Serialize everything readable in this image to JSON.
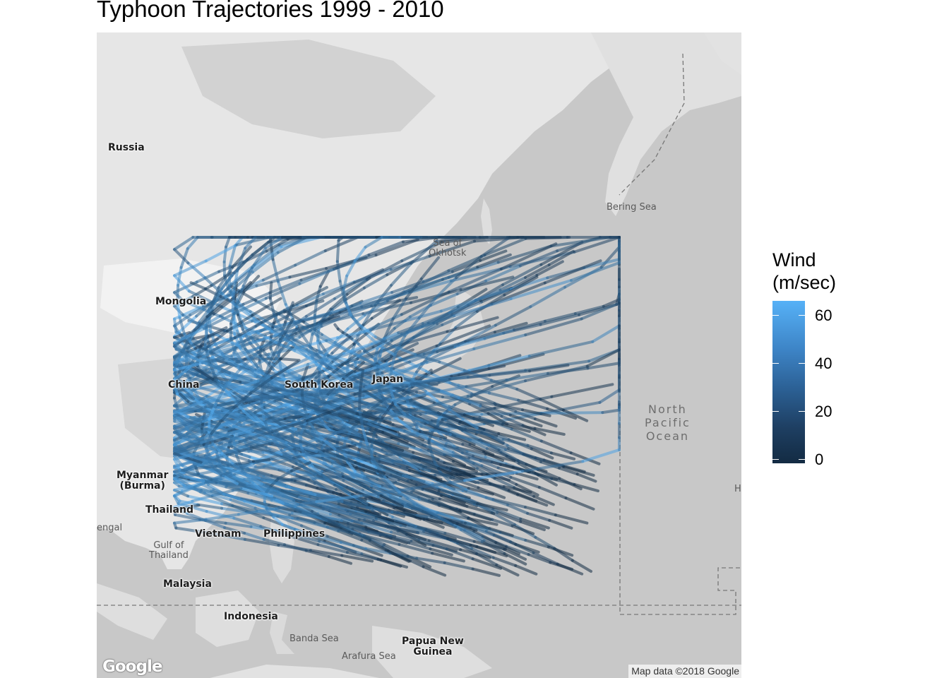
{
  "title": "Typhoon Trajectories 1999 - 2010",
  "map": {
    "attribution": "Map data ©2018 Google",
    "logo": "Google",
    "country_labels": [
      {
        "id": "russia",
        "text": "Russia"
      },
      {
        "id": "mongolia",
        "text": "Mongolia"
      },
      {
        "id": "china",
        "text": "China"
      },
      {
        "id": "south-korea",
        "text": "South Korea"
      },
      {
        "id": "japan",
        "text": "Japan"
      },
      {
        "id": "myanmar",
        "text": "Myanmar\n(Burma)"
      },
      {
        "id": "thailand",
        "text": "Thailand"
      },
      {
        "id": "vietnam",
        "text": "Vietnam"
      },
      {
        "id": "philippines",
        "text": "Philippines"
      },
      {
        "id": "malaysia",
        "text": "Malaysia"
      },
      {
        "id": "indonesia",
        "text": "Indonesia"
      },
      {
        "id": "papua-new-guinea",
        "text": "Papua New\nGuinea"
      }
    ],
    "sea_labels": [
      {
        "id": "bering-sea",
        "text": "Bering Sea"
      },
      {
        "id": "sea-of-okhotsk",
        "text": "Sea of\nOkhotsk"
      },
      {
        "id": "gulf-of-thailand",
        "text": "Gulf of\nThailand"
      },
      {
        "id": "bengal",
        "text": "engal"
      },
      {
        "id": "banda-sea",
        "text": "Banda Sea"
      },
      {
        "id": "arafura-sea",
        "text": "Arafura Sea"
      },
      {
        "id": "hi",
        "text": "HI"
      }
    ],
    "ocean_label": "North\nPacific\nOcean",
    "track_colors": {
      "low": "#132b43",
      "high": "#56b1f7"
    }
  },
  "legend": {
    "title": "Wind\n(m/sec)",
    "ticks": [
      {
        "label": "60",
        "value": 60
      },
      {
        "label": "40",
        "value": 40
      },
      {
        "label": "20",
        "value": 20
      },
      {
        "label": "0",
        "value": 0
      }
    ],
    "min": 0,
    "max": 65
  }
}
